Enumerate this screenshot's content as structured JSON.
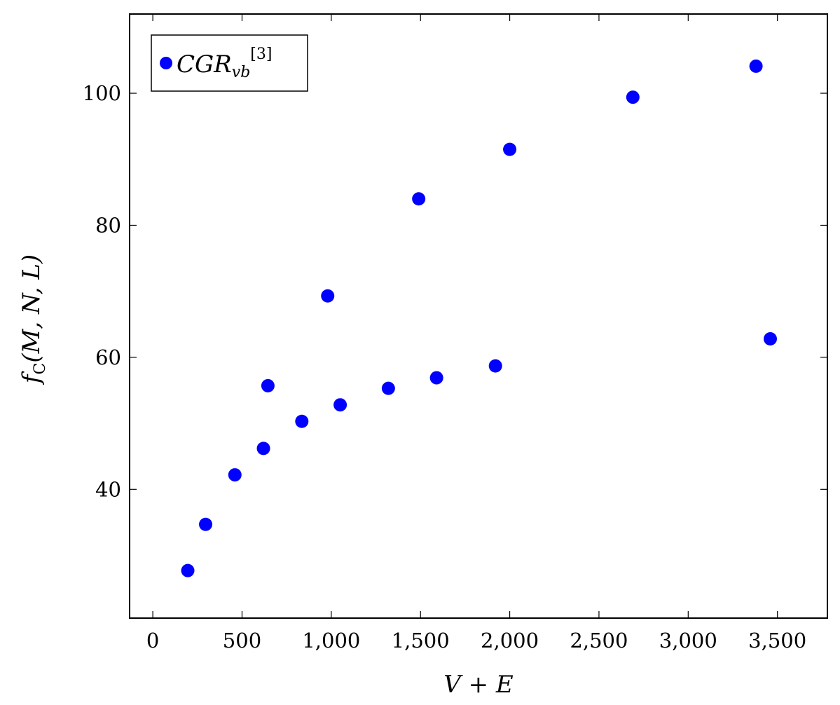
{
  "chart_data": {
    "type": "scatter",
    "xlabel": "V + E",
    "ylabel": "f_C(M, N, L)",
    "ylabel_base": "f",
    "ylabel_sub": "C",
    "ylabel_args": "(M, N, L)",
    "xlim": [
      -130,
      3780
    ],
    "ylim": [
      20.5,
      112
    ],
    "x_ticks": [
      0,
      500,
      1000,
      1500,
      2000,
      2500,
      3000,
      3500
    ],
    "x_tick_labels": [
      "0",
      "500",
      "1,000",
      "1,500",
      "2,000",
      "2,500",
      "3,000",
      "3,500"
    ],
    "y_ticks": [
      40,
      60,
      80,
      100
    ],
    "y_tick_labels": [
      "40",
      "60",
      "80",
      "100"
    ],
    "grid": false,
    "legend_placement": "top-left",
    "series": [
      {
        "name": "CGR_vb^[3]",
        "legend_main": "CGR",
        "legend_sub": "vb",
        "legend_sup": "[3]",
        "color": "#0000ff",
        "x": [
          196,
          296,
          460,
          620,
          645,
          835,
          980,
          1050,
          1320,
          1490,
          1590,
          1920,
          2000,
          2690,
          3380,
          3460
        ],
        "y": [
          27.7,
          34.7,
          42.2,
          46.2,
          55.7,
          50.3,
          69.3,
          52.8,
          55.3,
          84.0,
          56.9,
          58.7,
          91.5,
          99.4,
          104.1,
          62.8
        ]
      }
    ]
  }
}
